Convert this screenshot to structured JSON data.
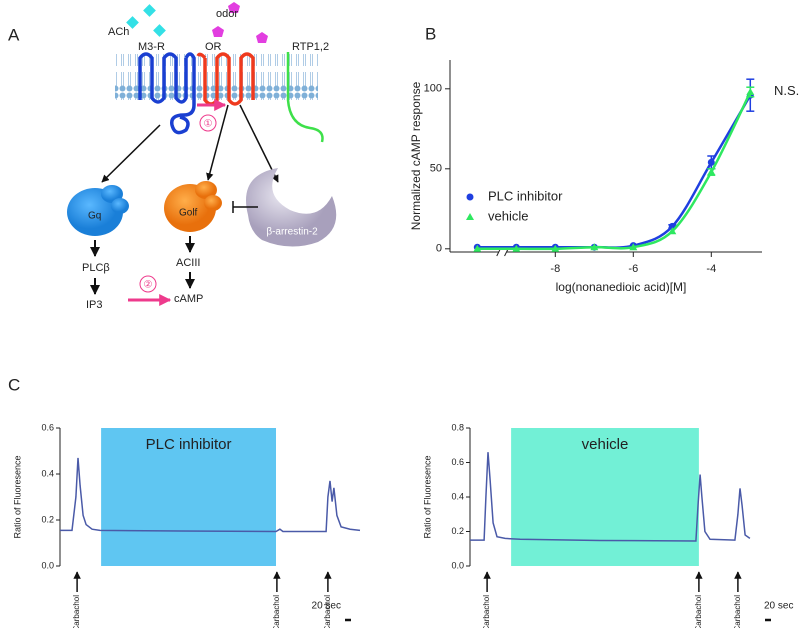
{
  "panel_a": {
    "letter": "A",
    "ach": "ACh",
    "odor": "odor",
    "m3r": "M3-R",
    "or": "OR",
    "rtp": "RTP1,2",
    "step1": "①",
    "gq": "Gq",
    "golf": "Golf",
    "arrestin": "β-arrestin-2",
    "plc": "PLCβ",
    "ip3": "IP3",
    "step2": "②",
    "aciii": "ACIII",
    "camp": "cAMP"
  },
  "chart_data": [
    {
      "letter": "B",
      "type": "line",
      "x": [
        -10,
        -9,
        -8,
        -7,
        -6,
        -5,
        -4,
        -3
      ],
      "xlim": [
        -10.7,
        -2.7
      ],
      "xticks": [
        -8,
        -6,
        -4
      ],
      "axis_break": [
        -9.45,
        -9.25
      ],
      "ylim": [
        -2,
        118
      ],
      "yticks": [
        0,
        50,
        100
      ],
      "xlabel": "log(nonanedioic acid)[M]",
      "ylabel": "Normalized cAMP response",
      "annotation": "N.S.",
      "series": [
        {
          "name": "PLC inhibitor",
          "color": "#1f3fe0",
          "marker": "circle",
          "values": [
            1,
            1,
            1,
            1,
            2,
            14,
            54,
            96
          ],
          "errors": [
            null,
            null,
            null,
            null,
            null,
            1,
            4,
            10
          ]
        },
        {
          "name": "vehicle",
          "color": "#2ee860",
          "marker": "triangle",
          "values": [
            0,
            0,
            0,
            1,
            1,
            11,
            48,
            98
          ],
          "errors": [
            null,
            null,
            null,
            null,
            null,
            null,
            2,
            3
          ]
        }
      ]
    },
    {
      "letter": "C",
      "type": "trace",
      "x": [
        0,
        40,
        53,
        60,
        67,
        77,
        87,
        107,
        133,
        400,
        720,
        733,
        743,
        800,
        887,
        893,
        900,
        907,
        913,
        923,
        937,
        967,
        1000
      ],
      "xlim": [
        0,
        1000
      ],
      "ylim": [
        0,
        0.6
      ],
      "yticks": [
        {
          "value": 0,
          "label": "0.0"
        },
        0.2,
        0.4,
        0.6
      ],
      "ylabel": "Ratio of Fluoresence",
      "series": [
        {
          "color": "#4a5aa8",
          "values": [
            0.155,
            0.155,
            0.3,
            0.47,
            0.35,
            0.22,
            0.18,
            0.16,
            0.155,
            0.152,
            0.15,
            0.16,
            0.15,
            0.15,
            0.15,
            0.3,
            0.37,
            0.28,
            0.34,
            0.22,
            0.17,
            0.16,
            0.155
          ]
        }
      ],
      "shade": {
        "label": "PLC inhibitor",
        "start": 137,
        "end": 720,
        "color": "#5fc6f2"
      },
      "arrows": [
        {
          "x": 57,
          "label": "Carbachol"
        },
        {
          "x": 723,
          "label": "Carbachol"
        },
        {
          "x": 893,
          "label": "Carbachol"
        }
      ],
      "scale_bar": {
        "seconds": 20,
        "label": "20 sec"
      }
    },
    {
      "type": "trace",
      "x": [
        0,
        47,
        53,
        60,
        67,
        77,
        90,
        117,
        167,
        433,
        753,
        760,
        767,
        773,
        783,
        800,
        883,
        893,
        900,
        907,
        917,
        933
      ],
      "xlim": [
        0,
        1000
      ],
      "ylim": [
        0,
        0.8
      ],
      "yticks": [
        {
          "value": 0,
          "label": "0.0"
        },
        0.2,
        0.4,
        0.6,
        0.8
      ],
      "ylabel": "Ratio of Fluoresence",
      "series": [
        {
          "color": "#4a5aa8",
          "values": [
            0.15,
            0.15,
            0.4,
            0.66,
            0.5,
            0.25,
            0.17,
            0.16,
            0.155,
            0.148,
            0.145,
            0.35,
            0.53,
            0.4,
            0.2,
            0.155,
            0.15,
            0.3,
            0.45,
            0.35,
            0.18,
            0.16
          ]
        }
      ],
      "shade": {
        "label": "vehicle",
        "start": 137,
        "end": 763,
        "color": "#72f0d6"
      },
      "arrows": [
        {
          "x": 57,
          "label": "Carbachol"
        },
        {
          "x": 763,
          "label": "Carbachol"
        },
        {
          "x": 893,
          "label": "Carbachol"
        }
      ],
      "scale_bar": {
        "seconds": 20,
        "label": "20 sec"
      }
    }
  ]
}
